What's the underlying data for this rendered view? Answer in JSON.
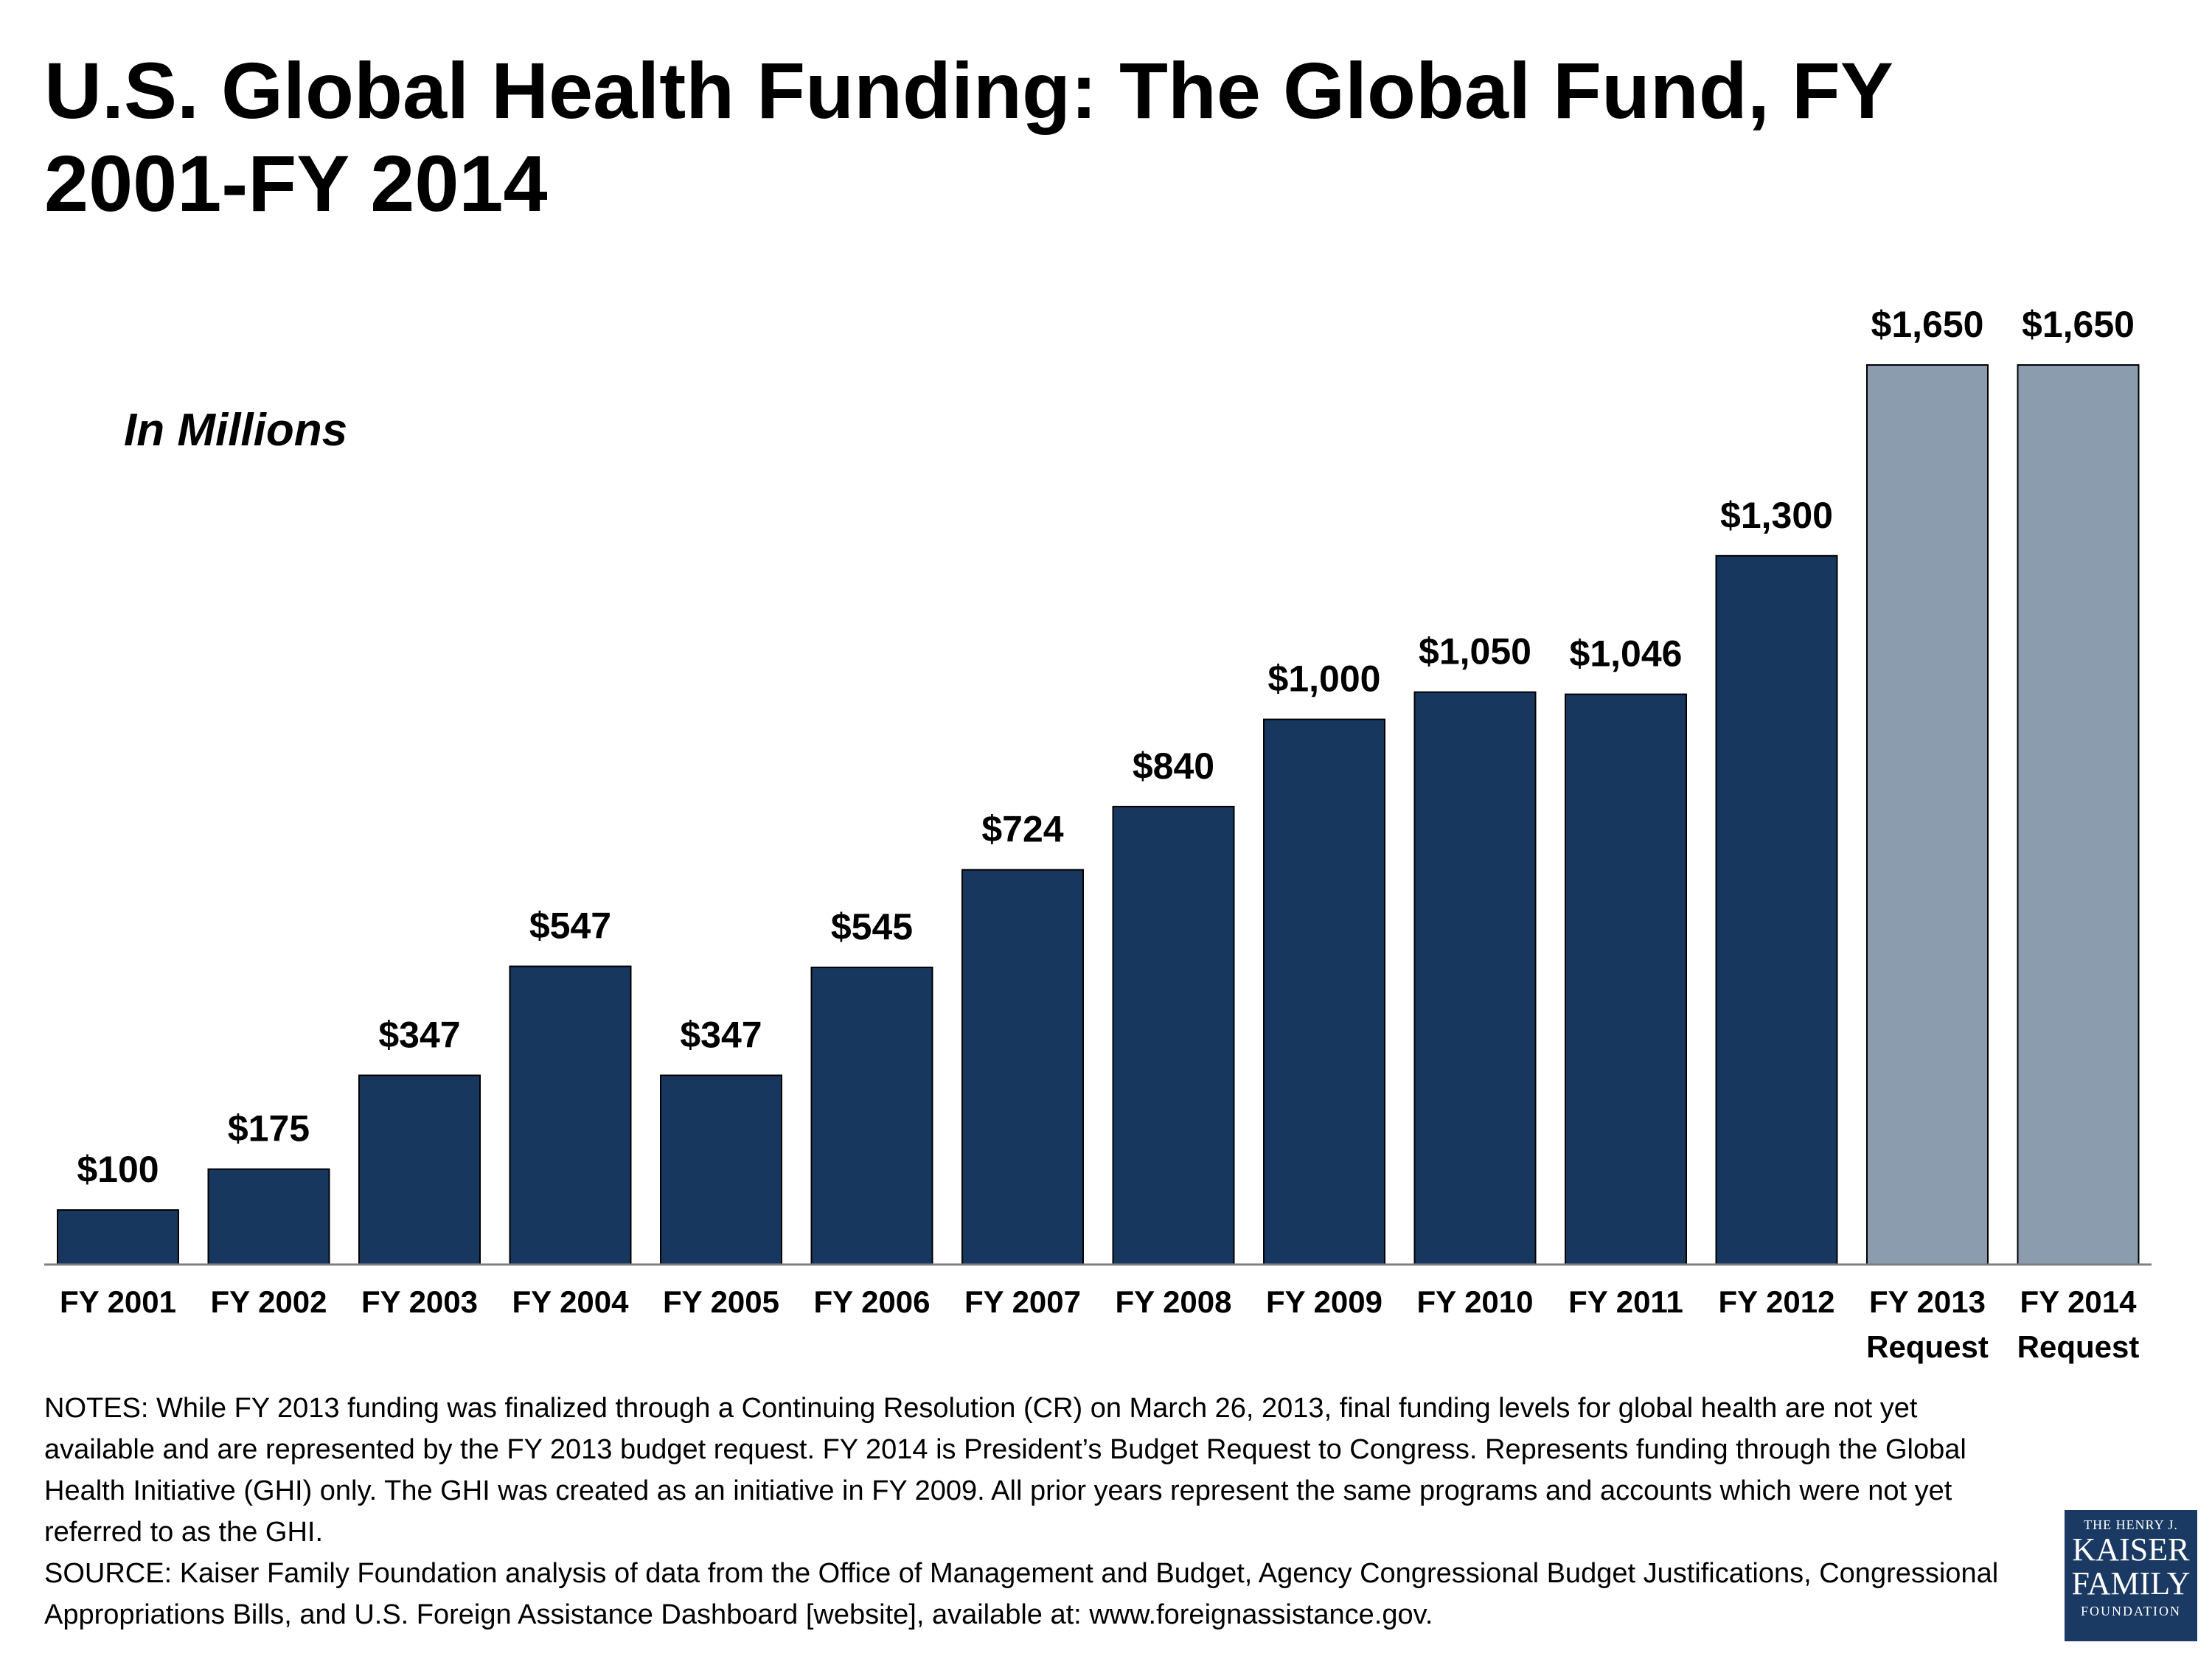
{
  "title": "U.S. Global Health Funding: The Global Fund, FY 2001-FY 2014",
  "subtitle": "In Millions",
  "chart_data": {
    "type": "bar",
    "title": "U.S. Global Health Funding: The Global Fund, FY 2001-FY 2014",
    "ylabel": "In Millions",
    "xlabel": "",
    "ylim": [
      0,
      1650
    ],
    "categories": [
      [
        "FY 2001"
      ],
      [
        "FY 2002"
      ],
      [
        "FY 2003"
      ],
      [
        "FY 2004"
      ],
      [
        "FY 2005"
      ],
      [
        "FY 2006"
      ],
      [
        "FY 2007"
      ],
      [
        "FY 2008"
      ],
      [
        "FY 2009"
      ],
      [
        "FY 2010"
      ],
      [
        "FY 2011"
      ],
      [
        "FY 2012"
      ],
      [
        "FY 2013",
        "Request"
      ],
      [
        "FY 2014",
        "Request"
      ]
    ],
    "values": [
      100,
      175,
      347,
      547,
      347,
      545,
      724,
      840,
      1000,
      1050,
      1046,
      1300,
      1650,
      1650
    ],
    "value_labels": [
      "$100",
      "$175",
      "$347",
      "$547",
      "$347",
      "$545",
      "$724",
      "$840",
      "$1,000",
      "$1,050",
      "$1,046",
      "$1,300",
      "$1,650",
      "$1,650"
    ],
    "bar_types": [
      "enacted",
      "enacted",
      "enacted",
      "enacted",
      "enacted",
      "enacted",
      "enacted",
      "enacted",
      "enacted",
      "enacted",
      "enacted",
      "enacted",
      "request",
      "request"
    ],
    "colors": {
      "enacted": "#17375e",
      "request": "#8b9cae",
      "axis": "#7f7f7f"
    }
  },
  "notes": "NOTES: While FY 2013 funding was finalized through a Continuing Resolution (CR) on March 26, 2013, final funding levels for global health are not yet available and are represented by the FY 2013 budget request. FY 2014 is President’s Budget Request to Congress. Represents funding through the Global Health Initiative (GHI) only. The GHI was created as an initiative in FY 2009.  All prior years represent the same programs and accounts which were not yet referred to as the GHI.",
  "source": "SOURCE: Kaiser Family Foundation analysis of data from the Office of Management and Budget, Agency Congressional Budget Justifications, Congressional Appropriations Bills, and U.S. Foreign Assistance Dashboard [website], available at: www.foreignassistance.gov.",
  "logo": {
    "line1": "THE HENRY J.",
    "line2": "KAISER",
    "line3": "FAMILY",
    "line4": "FOUNDATION"
  }
}
